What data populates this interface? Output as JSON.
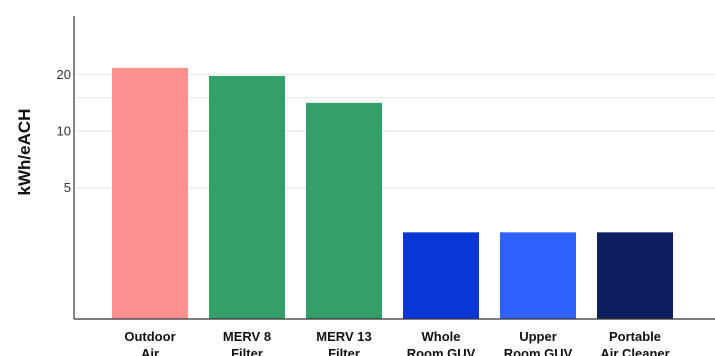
{
  "chart_data": {
    "type": "bar",
    "title": "",
    "xlabel": "",
    "ylabel": "kWh/eACH",
    "categories": [
      [
        "Outdoor",
        "Air"
      ],
      [
        "MERV 8",
        "Filter"
      ],
      [
        "MERV 13",
        "Filter"
      ],
      [
        "Whole",
        "Room GUV"
      ],
      [
        "Upper",
        "Room GUV"
      ],
      [
        "Portable",
        "Air Cleaner"
      ]
    ],
    "values": [
      21.6,
      19.6,
      14.1,
      2.9,
      2.9,
      2.9
    ],
    "colors": [
      "#ff9090",
      "#33a06a",
      "#33a06a",
      "#0a36d6",
      "#2f62ff",
      "#0d1f5e"
    ],
    "yscale": "log",
    "ylim": [
      1,
      27
    ],
    "yticks": [
      5,
      10,
      20
    ],
    "grid": true
  }
}
